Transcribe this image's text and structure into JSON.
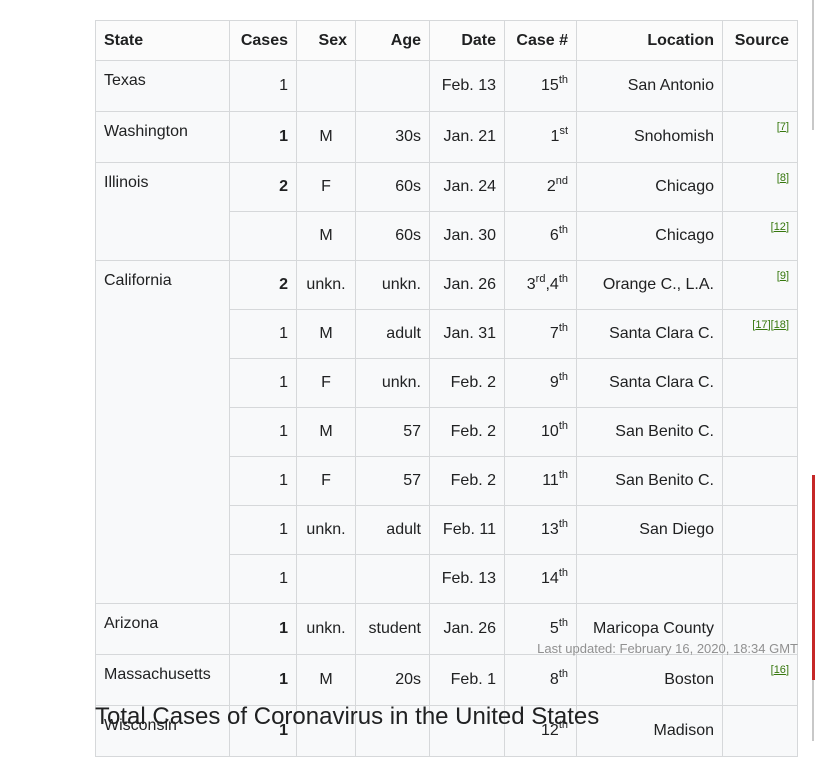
{
  "table": {
    "headers": {
      "state": "State",
      "cases": "Cases",
      "sex": "Sex",
      "age": "Age",
      "date": "Date",
      "case_num": "Case #",
      "location": "Location",
      "source": "Source"
    },
    "rows": [
      {
        "state": "Texas",
        "cases": "1",
        "sex": "",
        "age": "",
        "date": "Feb. 13",
        "num": "15",
        "suffix": "th",
        "location": "San Antonio",
        "refs": []
      },
      {
        "state": "Washington",
        "cases": "1",
        "sex": "M",
        "age": "30s",
        "date": "Jan. 21",
        "num": "1",
        "suffix": "st",
        "location": "Snohomish",
        "refs": [
          "7"
        ]
      },
      {
        "state": "Illinois",
        "cases": "2",
        "sex": "F",
        "age": "60s",
        "date": "Jan. 24",
        "num": "2",
        "suffix": "nd",
        "location": "Chicago",
        "refs": [
          "8"
        ]
      },
      {
        "cases": "",
        "sex": "M",
        "age": "60s",
        "date": "Jan. 30",
        "num": "6",
        "suffix": "th",
        "location": "Chicago",
        "refs": [
          "12"
        ]
      },
      {
        "state": "California",
        "cases": "2",
        "sex": "unkn.",
        "age": "unkn.",
        "date": "Jan. 26",
        "num": "3",
        "suffix": "rd",
        "num2": "4",
        "suffix2": "th",
        "location": "Orange C., L.A.",
        "refs": [
          "9"
        ]
      },
      {
        "cases": "1",
        "sex": "M",
        "age": "adult",
        "date": "Jan. 31",
        "num": "7",
        "suffix": "th",
        "location": "Santa Clara C.",
        "refs": [
          "17",
          "18"
        ]
      },
      {
        "cases": "1",
        "sex": "F",
        "age": "unkn.",
        "date": "Feb. 2",
        "num": "9",
        "suffix": "th",
        "location": "Santa Clara C.",
        "refs": []
      },
      {
        "cases": "1",
        "sex": "M",
        "age": "57",
        "date": "Feb. 2",
        "num": "10",
        "suffix": "th",
        "location": "San Benito C.",
        "refs": []
      },
      {
        "cases": "1",
        "sex": "F",
        "age": "57",
        "date": "Feb. 2",
        "num": "11",
        "suffix": "th",
        "location": "San Benito C.",
        "refs": []
      },
      {
        "cases": "1",
        "sex": "unkn.",
        "age": "adult",
        "date": "Feb. 11",
        "num": "13",
        "suffix": "th",
        "location": "San Diego",
        "refs": []
      },
      {
        "cases": "1",
        "sex": "",
        "age": "",
        "date": "Feb. 13",
        "num": "14",
        "suffix": "th",
        "location": "",
        "refs": []
      },
      {
        "state": "Arizona",
        "cases": "1",
        "sex": "unkn.",
        "age": "student",
        "date": "Jan. 26",
        "num": "5",
        "suffix": "th",
        "location": "Maricopa County",
        "refs": []
      },
      {
        "state": "Massachusetts",
        "cases": "1",
        "sex": "M",
        "age": "20s",
        "date": "Feb. 1",
        "num": "8",
        "suffix": "th",
        "location": "Boston",
        "refs": [
          "16"
        ]
      },
      {
        "state": "Wisconsin",
        "cases": "1",
        "sex": "",
        "age": "",
        "date": "",
        "num": "12",
        "suffix": "th",
        "location": "Madison",
        "refs": []
      }
    ],
    "bold_case_rows": [
      1,
      2,
      4,
      11,
      12,
      13
    ],
    "state_rowspans": {
      "0": 1,
      "1": 1,
      "2": 2,
      "4": 7,
      "11": 1,
      "12": 1,
      "13": 1
    }
  },
  "last_updated": "Last updated: February 16, 2020, 18:34 GMT",
  "section_title": "Total Cases of Coronavirus in the United States",
  "colors": {
    "ref_link": "#36770d",
    "table_bg": "#f8f9fa",
    "border": "#d6d8da",
    "scroll_accent": "#c62828"
  }
}
